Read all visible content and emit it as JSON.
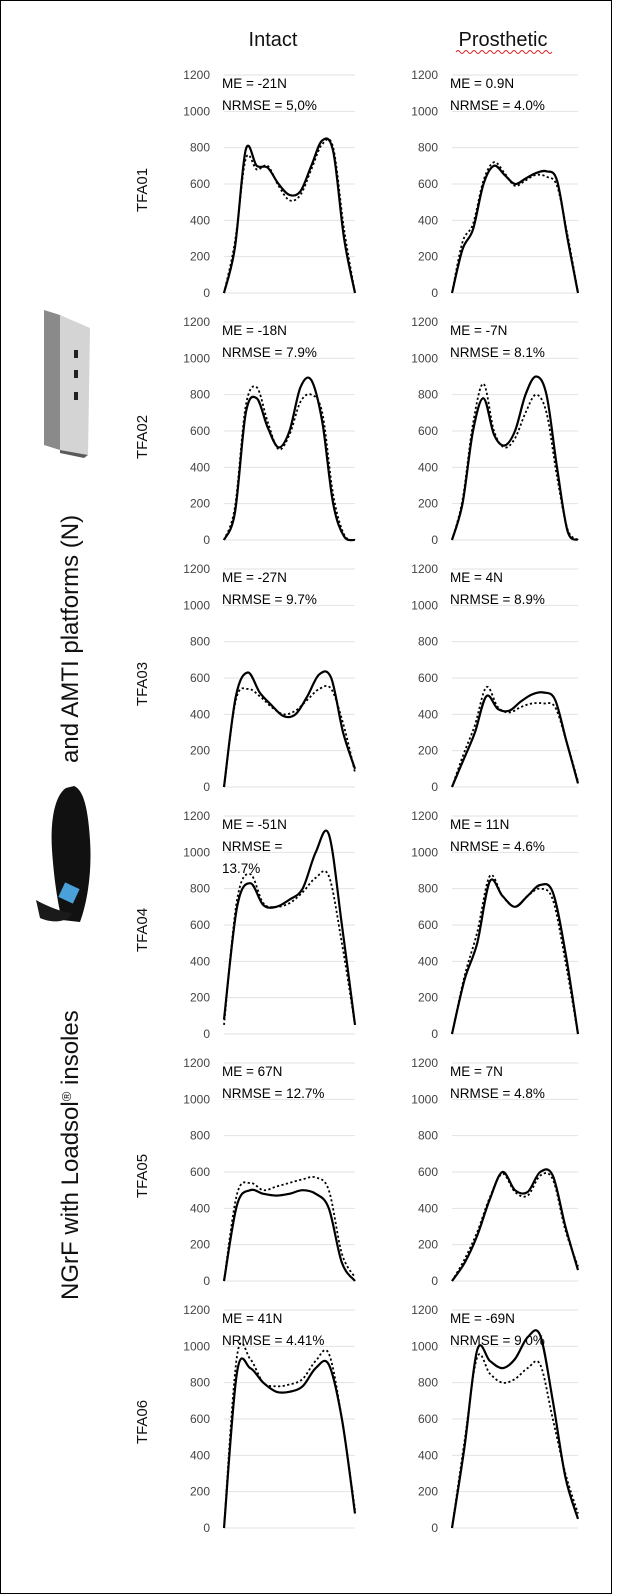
{
  "figure": {
    "column_titles": [
      "Intact",
      "Prosthetic"
    ],
    "y_label_part1": "NGrF with Loadsol",
    "y_label_reg": "®",
    "y_label_part2": " insoles",
    "y_label_part3": "and AMTI platforms (N)",
    "insole_image": "loadsol-insole-icon",
    "platform_image": "amti-force-platform-icon"
  },
  "chart_data": [
    {
      "type": "line",
      "subject": "TFA01",
      "side": "Intact",
      "ylim": [
        0,
        1200
      ],
      "yticks": [
        0,
        200,
        400,
        600,
        800,
        1000,
        1200
      ],
      "annotation": [
        "ME = -21N",
        "NRMSE = 5,0%"
      ],
      "series": [
        {
          "style": "solid",
          "y": [
            0,
            250,
            790,
            700,
            690,
            600,
            540,
            560,
            700,
            840,
            780,
            300,
            0
          ]
        },
        {
          "style": "dotted",
          "y": [
            0,
            280,
            740,
            680,
            700,
            590,
            510,
            540,
            680,
            820,
            800,
            350,
            0
          ]
        }
      ]
    },
    {
      "type": "line",
      "subject": "TFA01",
      "side": "Prosthetic",
      "ylim": [
        0,
        1200
      ],
      "yticks": [
        0,
        200,
        400,
        600,
        800,
        1000,
        1200
      ],
      "annotation": [
        "ME = 0.9N",
        "NRMSE = 4.0%"
      ],
      "series": [
        {
          "style": "solid",
          "y": [
            0,
            240,
            350,
            600,
            700,
            650,
            600,
            630,
            660,
            670,
            620,
            300,
            0
          ]
        },
        {
          "style": "dotted",
          "y": [
            0,
            280,
            380,
            620,
            720,
            660,
            590,
            620,
            650,
            640,
            590,
            320,
            0
          ]
        }
      ]
    },
    {
      "type": "line",
      "subject": "TFA02",
      "side": "Intact",
      "ylim": [
        0,
        1200
      ],
      "yticks": [
        0,
        200,
        400,
        600,
        800,
        1000,
        1200
      ],
      "annotation": [
        "ME = -18N",
        "NRMSE = 7.9%"
      ],
      "series": [
        {
          "style": "solid",
          "y": [
            0,
            150,
            700,
            780,
            620,
            510,
            600,
            840,
            880,
            650,
            200,
            20,
            0
          ]
        },
        {
          "style": "dotted",
          "y": [
            0,
            180,
            740,
            840,
            650,
            500,
            580,
            760,
            800,
            700,
            250,
            30,
            0
          ]
        }
      ]
    },
    {
      "type": "line",
      "subject": "TFA02",
      "side": "Prosthetic",
      "ylim": [
        0,
        1200
      ],
      "yticks": [
        0,
        200,
        400,
        600,
        800,
        1000,
        1200
      ],
      "annotation": [
        "ME = -7N",
        "NRMSE = 8.1%"
      ],
      "series": [
        {
          "style": "solid",
          "y": [
            0,
            200,
            600,
            780,
            580,
            520,
            600,
            800,
            900,
            800,
            400,
            50,
            0
          ]
        },
        {
          "style": "dotted",
          "y": [
            0,
            220,
            640,
            860,
            600,
            510,
            560,
            700,
            800,
            700,
            350,
            60,
            0
          ]
        }
      ]
    },
    {
      "type": "line",
      "subject": "TFA03",
      "side": "Intact",
      "ylim": [
        0,
        1200
      ],
      "yticks": [
        0,
        200,
        400,
        600,
        800,
        1000,
        1200
      ],
      "annotation": [
        "ME = -27N",
        "NRMSE = 9.7%"
      ],
      "series": [
        {
          "style": "solid",
          "y": [
            0,
            500,
            630,
            520,
            450,
            390,
            400,
            500,
            620,
            600,
            300,
            100
          ]
        },
        {
          "style": "dotted",
          "y": [
            0,
            480,
            540,
            500,
            440,
            400,
            420,
            480,
            540,
            540,
            350,
            80
          ]
        }
      ]
    },
    {
      "type": "line",
      "subject": "TFA03",
      "side": "Prosthetic",
      "ylim": [
        0,
        1200
      ],
      "yticks": [
        0,
        200,
        400,
        600,
        800,
        1000,
        1200
      ],
      "annotation": [
        "ME = 4N",
        "NRMSE = 8.9%"
      ],
      "series": [
        {
          "style": "solid",
          "y": [
            0,
            150,
            300,
            500,
            430,
            420,
            470,
            510,
            520,
            480,
            250,
            20
          ]
        },
        {
          "style": "dotted",
          "y": [
            0,
            180,
            340,
            550,
            440,
            410,
            440,
            460,
            460,
            440,
            250,
            30
          ]
        }
      ]
    },
    {
      "type": "line",
      "subject": "TFA04",
      "side": "Intact",
      "ylim": [
        0,
        1200
      ],
      "yticks": [
        0,
        200,
        400,
        600,
        800,
        1000,
        1200
      ],
      "annotation": [
        "ME = -51N",
        "NRMSE =",
        "13.7%"
      ],
      "series": [
        {
          "style": "solid",
          "y": [
            80,
            700,
            830,
            710,
            700,
            740,
            800,
            1000,
            1100,
            600,
            50
          ]
        },
        {
          "style": "dotted",
          "y": [
            50,
            740,
            880,
            720,
            700,
            720,
            780,
            860,
            870,
            500,
            50
          ]
        }
      ]
    },
    {
      "type": "line",
      "subject": "TFA04",
      "side": "Prosthetic",
      "ylim": [
        0,
        1200
      ],
      "yticks": [
        0,
        200,
        400,
        600,
        800,
        1000,
        1200
      ],
      "annotation": [
        "ME = 11N",
        "NRMSE = 4.6%"
      ],
      "series": [
        {
          "style": "solid",
          "y": [
            0,
            300,
            500,
            840,
            760,
            700,
            760,
            820,
            780,
            450,
            0
          ]
        },
        {
          "style": "dotted",
          "y": [
            0,
            320,
            560,
            870,
            760,
            700,
            760,
            800,
            740,
            400,
            0
          ]
        }
      ]
    },
    {
      "type": "line",
      "subject": "TFA05",
      "side": "Intact",
      "ylim": [
        0,
        1200
      ],
      "yticks": [
        0,
        200,
        400,
        600,
        800,
        1000,
        1200
      ],
      "annotation": [
        "ME = 67N",
        "NRMSE = 12.7%"
      ],
      "series": [
        {
          "style": "solid",
          "y": [
            0,
            420,
            500,
            480,
            470,
            480,
            500,
            480,
            400,
            100,
            0
          ]
        },
        {
          "style": "dotted",
          "y": [
            0,
            480,
            540,
            500,
            520,
            540,
            560,
            570,
            500,
            150,
            20
          ]
        }
      ]
    },
    {
      "type": "line",
      "subject": "TFA05",
      "side": "Prosthetic",
      "ylim": [
        0,
        1200
      ],
      "yticks": [
        0,
        200,
        400,
        600,
        800,
        1000,
        1200
      ],
      "annotation": [
        "ME = 7N",
        "NRMSE = 4.8%"
      ],
      "series": [
        {
          "style": "solid",
          "y": [
            0,
            100,
            250,
            450,
            600,
            500,
            490,
            600,
            580,
            300,
            60
          ]
        },
        {
          "style": "dotted",
          "y": [
            0,
            120,
            270,
            460,
            590,
            490,
            470,
            580,
            560,
            280,
            80
          ]
        }
      ]
    },
    {
      "type": "line",
      "subject": "TFA06",
      "side": "Intact",
      "ylim": [
        0,
        1200
      ],
      "yticks": [
        0,
        200,
        400,
        600,
        800,
        1000,
        1200
      ],
      "annotation": [
        "ME = 41N",
        "NRMSE = 4.41%"
      ],
      "series": [
        {
          "style": "solid",
          "y": [
            0,
            860,
            880,
            800,
            750,
            750,
            780,
            880,
            900,
            600,
            80
          ]
        },
        {
          "style": "dotted",
          "y": [
            0,
            950,
            930,
            800,
            780,
            790,
            820,
            920,
            960,
            600,
            100
          ]
        }
      ]
    },
    {
      "type": "line",
      "subject": "TFA06",
      "side": "Prosthetic",
      "ylim": [
        0,
        1200
      ],
      "yticks": [
        0,
        200,
        400,
        600,
        800,
        1000,
        1200
      ],
      "annotation": [
        "ME = -69N",
        "NRMSE = 9.0%"
      ],
      "series": [
        {
          "style": "solid",
          "y": [
            0,
            450,
            980,
            920,
            880,
            930,
            1050,
            1060,
            700,
            280,
            50
          ]
        },
        {
          "style": "dotted",
          "y": [
            0,
            480,
            940,
            850,
            800,
            820,
            880,
            900,
            600,
            300,
            80
          ]
        }
      ]
    }
  ]
}
